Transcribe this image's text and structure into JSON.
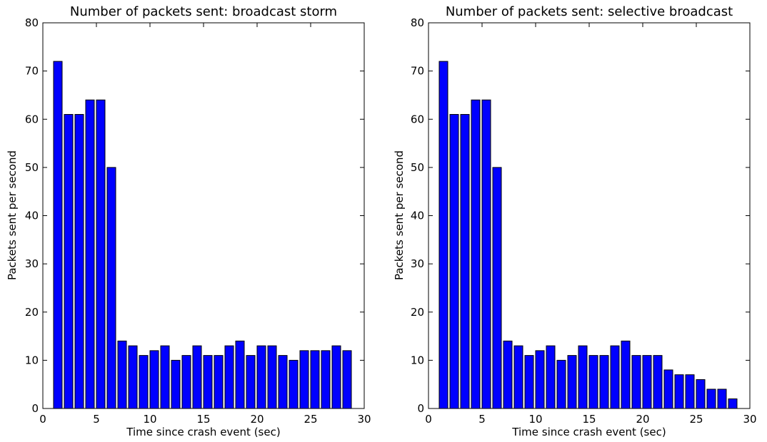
{
  "chart_data": [
    {
      "type": "bar",
      "title": "Number of packets sent: broadcast storm",
      "xlabel": "Time since crash event (sec)",
      "ylabel": "Packets sent per second",
      "xlim": [
        0,
        30
      ],
      "ylim": [
        0,
        80
      ],
      "xticks": [
        0,
        5,
        10,
        15,
        20,
        25,
        30
      ],
      "yticks": [
        0,
        10,
        20,
        30,
        40,
        50,
        60,
        70,
        80
      ],
      "bar_color": "#0000ff",
      "grid": false,
      "x": [
        1,
        2,
        3,
        4,
        5,
        6,
        7,
        8,
        9,
        10,
        11,
        12,
        13,
        14,
        15,
        16,
        17,
        18,
        19,
        20,
        21,
        22,
        23,
        24,
        25,
        26,
        27,
        28
      ],
      "values": [
        72,
        61,
        61,
        64,
        64,
        50,
        14,
        13,
        11,
        12,
        13,
        10,
        11,
        13,
        11,
        11,
        13,
        14,
        11,
        13,
        13,
        11,
        10,
        12,
        12,
        12,
        13,
        12
      ]
    },
    {
      "type": "bar",
      "title": "Number of packets sent: selective broadcast",
      "xlabel": "Time since crash event (sec)",
      "ylabel": "Packets sent per second",
      "xlim": [
        0,
        30
      ],
      "ylim": [
        0,
        80
      ],
      "xticks": [
        0,
        5,
        10,
        15,
        20,
        25,
        30
      ],
      "yticks": [
        0,
        10,
        20,
        30,
        40,
        50,
        60,
        70,
        80
      ],
      "bar_color": "#0000ff",
      "grid": false,
      "x": [
        1,
        2,
        3,
        4,
        5,
        6,
        7,
        8,
        9,
        10,
        11,
        12,
        13,
        14,
        15,
        16,
        17,
        18,
        19,
        20,
        21,
        22,
        23,
        24,
        25,
        26,
        27,
        28
      ],
      "values": [
        72,
        61,
        61,
        64,
        64,
        50,
        14,
        13,
        11,
        12,
        13,
        10,
        11,
        13,
        11,
        11,
        13,
        14,
        11,
        11,
        11,
        8,
        7,
        7,
        6,
        4,
        4,
        2
      ]
    }
  ]
}
